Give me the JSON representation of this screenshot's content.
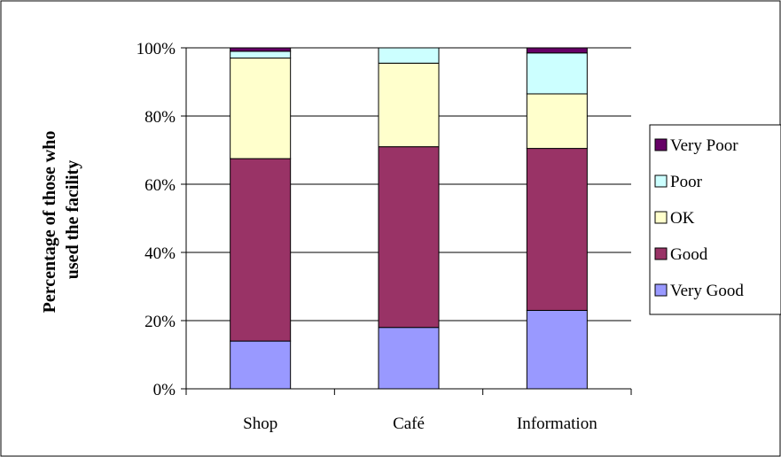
{
  "chart_data": {
    "type": "bar",
    "stacked": true,
    "percent_stacked": true,
    "ylabel_lines": [
      "Percentage of those who",
      "used the facility"
    ],
    "xlabel": "",
    "categories": [
      "Shop",
      "Café",
      "Information"
    ],
    "y_ticks": [
      "0%",
      "20%",
      "40%",
      "60%",
      "80%",
      "100%"
    ],
    "ylim": [
      0,
      100
    ],
    "grid": true,
    "legend_position": "right",
    "series": [
      {
        "name": "Very Good",
        "color": "#9999ff",
        "values": [
          14,
          18,
          23
        ]
      },
      {
        "name": "Good",
        "color": "#993366",
        "values": [
          53.5,
          53,
          47.5
        ]
      },
      {
        "name": "OK",
        "color": "#ffffcc",
        "values": [
          29.5,
          24.5,
          16
        ]
      },
      {
        "name": "Poor",
        "color": "#ccffff",
        "values": [
          2,
          4.5,
          12
        ]
      },
      {
        "name": "Very Poor",
        "color": "#660066",
        "values": [
          1,
          0,
          1.5
        ]
      }
    ]
  }
}
